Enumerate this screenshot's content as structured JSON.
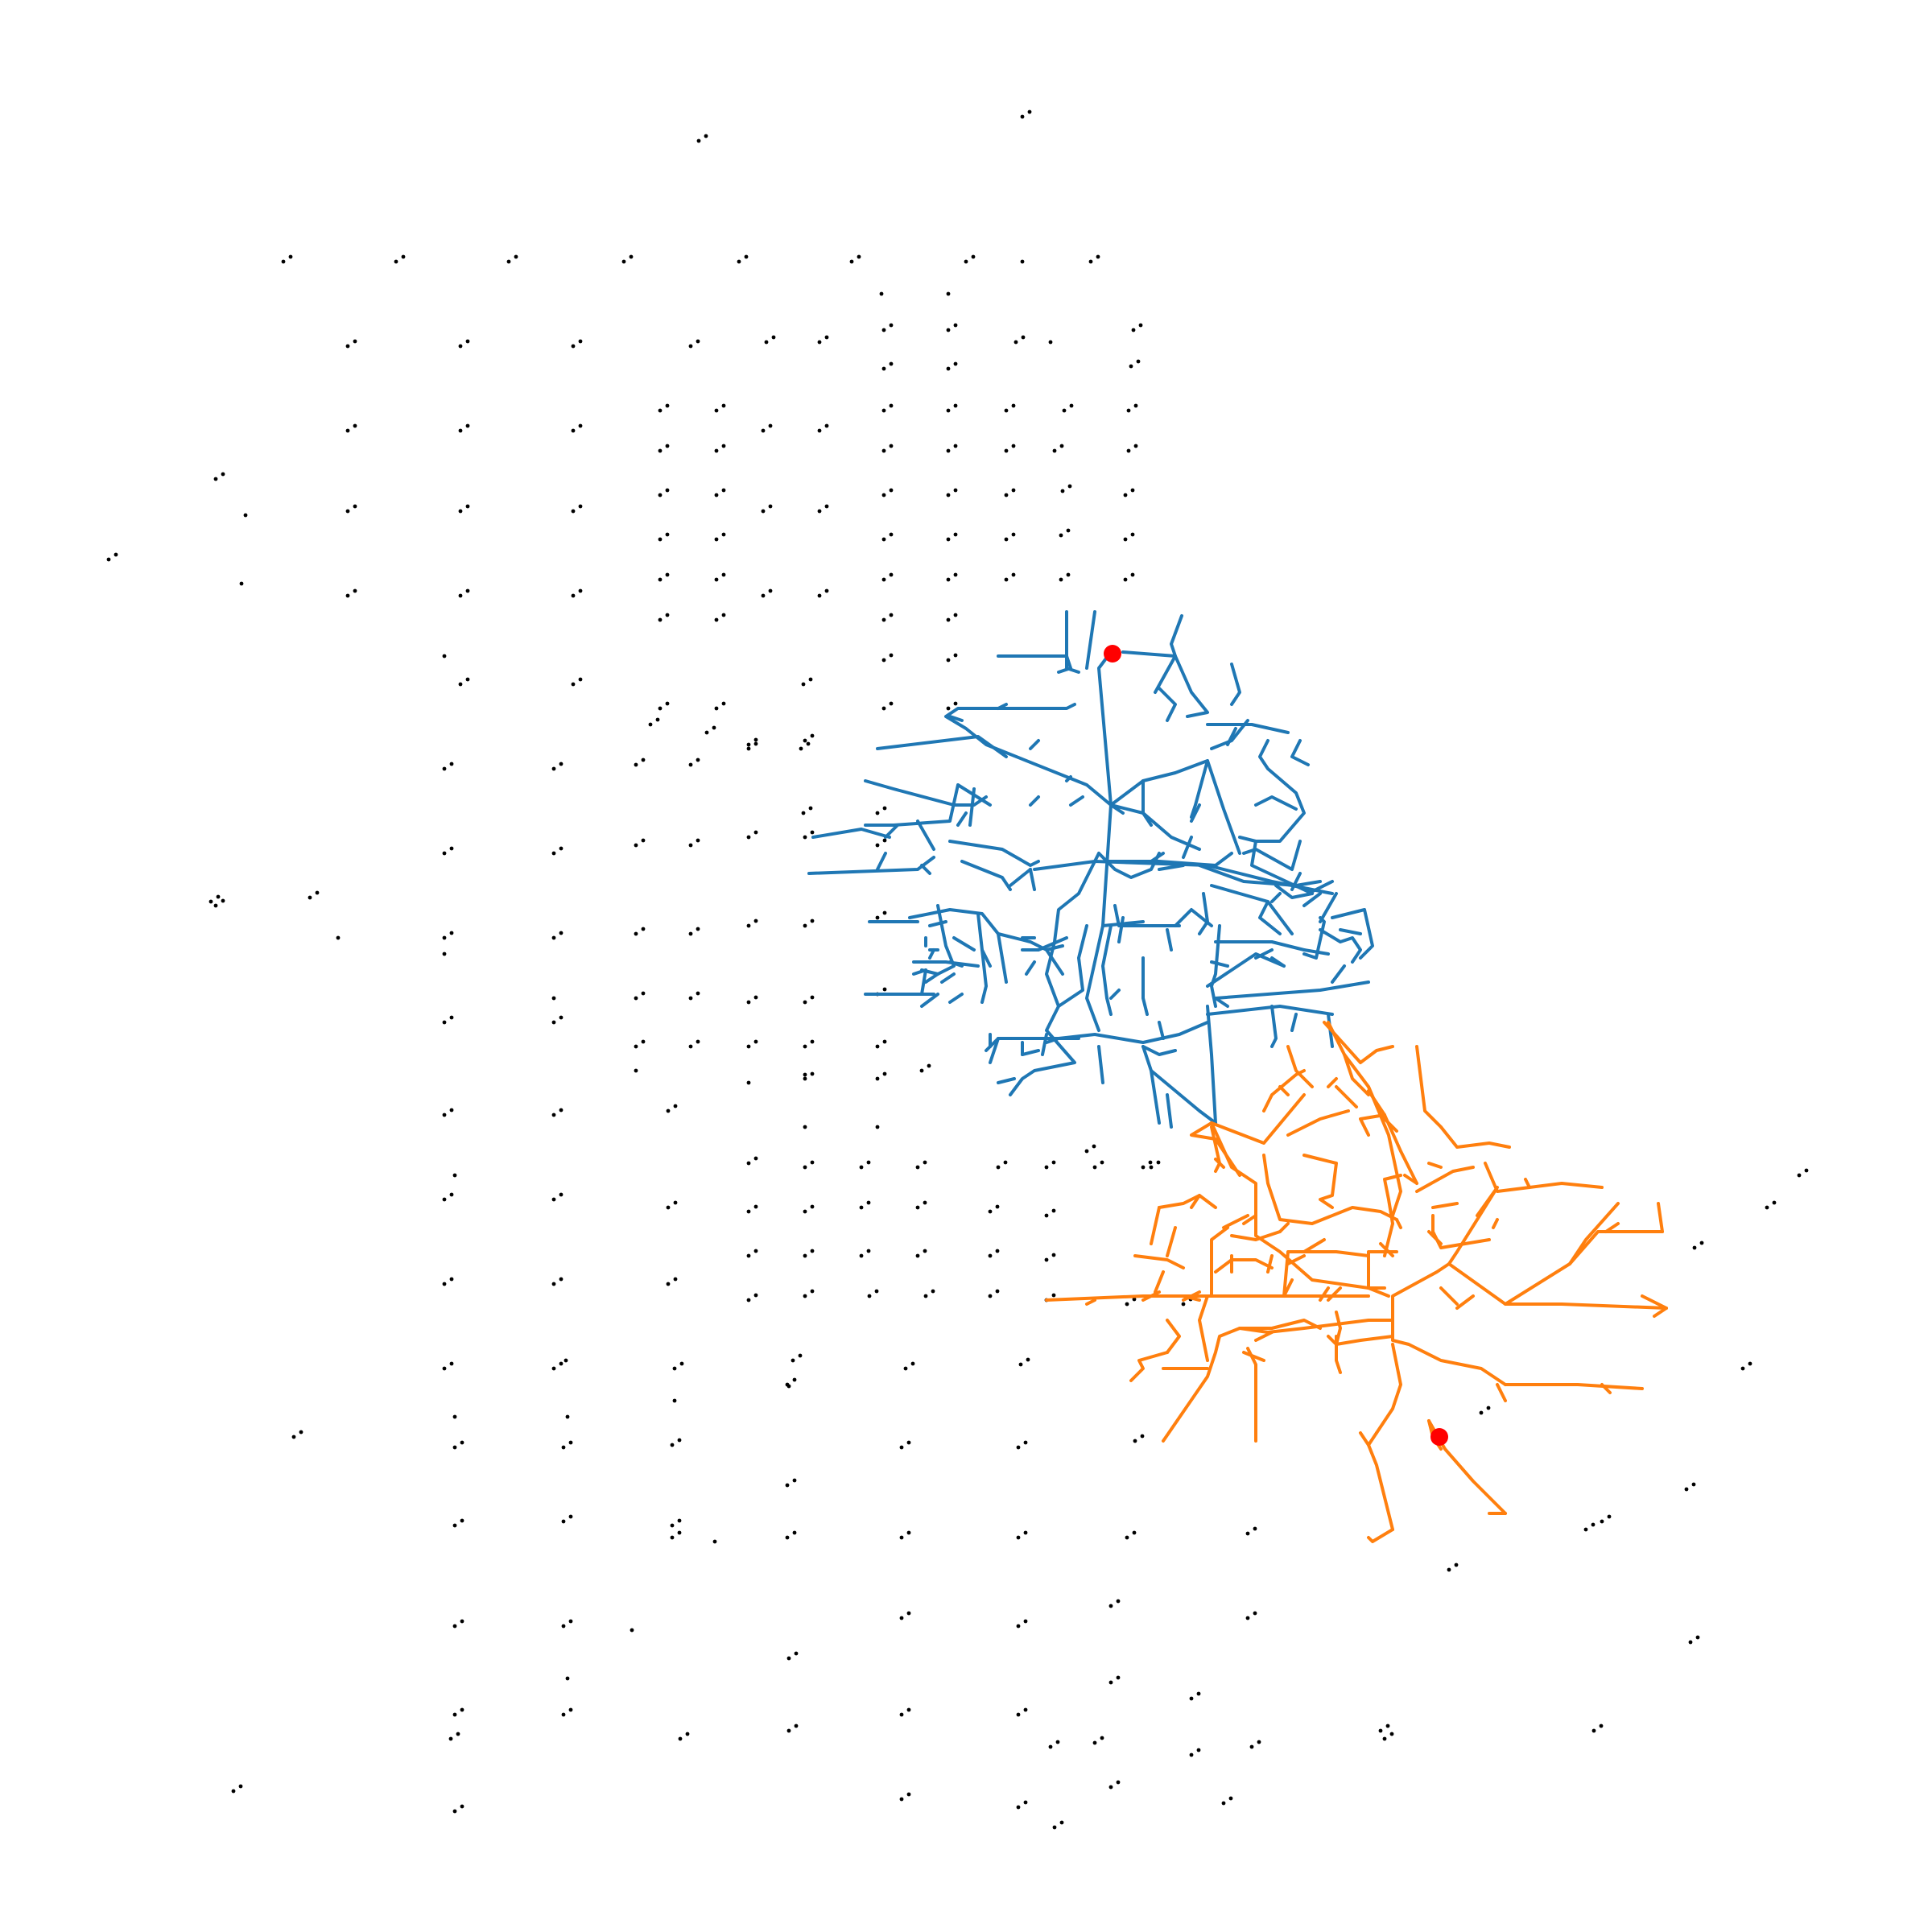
{
  "colors": {
    "background": "#ffffff",
    "node": "#000000",
    "tree_blue": "#1f77b4",
    "tree_orange": "#ff7f0e",
    "root": "#ff0000"
  },
  "legend": null
}
